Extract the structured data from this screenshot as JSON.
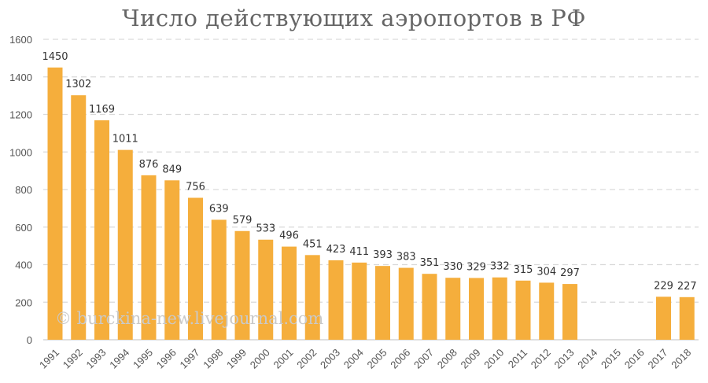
{
  "chart_data": {
    "type": "bar",
    "title": "Число действующих аэропортов в РФ",
    "categories": [
      "1991",
      "1992",
      "1993",
      "1994",
      "1995",
      "1996",
      "1997",
      "1998",
      "1999",
      "2000",
      "2001",
      "2002",
      "2003",
      "2004",
      "2005",
      "2006",
      "2007",
      "2008",
      "2009",
      "2010",
      "2011",
      "2012",
      "2013",
      "2014",
      "2015",
      "2016",
      "2017",
      "2018"
    ],
    "values": [
      1450,
      1302,
      1169,
      1011,
      876,
      849,
      756,
      639,
      579,
      533,
      496,
      451,
      423,
      411,
      393,
      383,
      351,
      330,
      329,
      332,
      315,
      304,
      297,
      null,
      null,
      null,
      229,
      227
    ],
    "ylim": [
      0,
      1600
    ],
    "yticks": [
      0,
      200,
      400,
      600,
      800,
      1000,
      1200,
      1400,
      1600
    ],
    "grid": true,
    "bar_color": "#F5AE3C",
    "grid_color": "#d9d9d9",
    "watermark": "© burckina-new.livejournal.com"
  }
}
